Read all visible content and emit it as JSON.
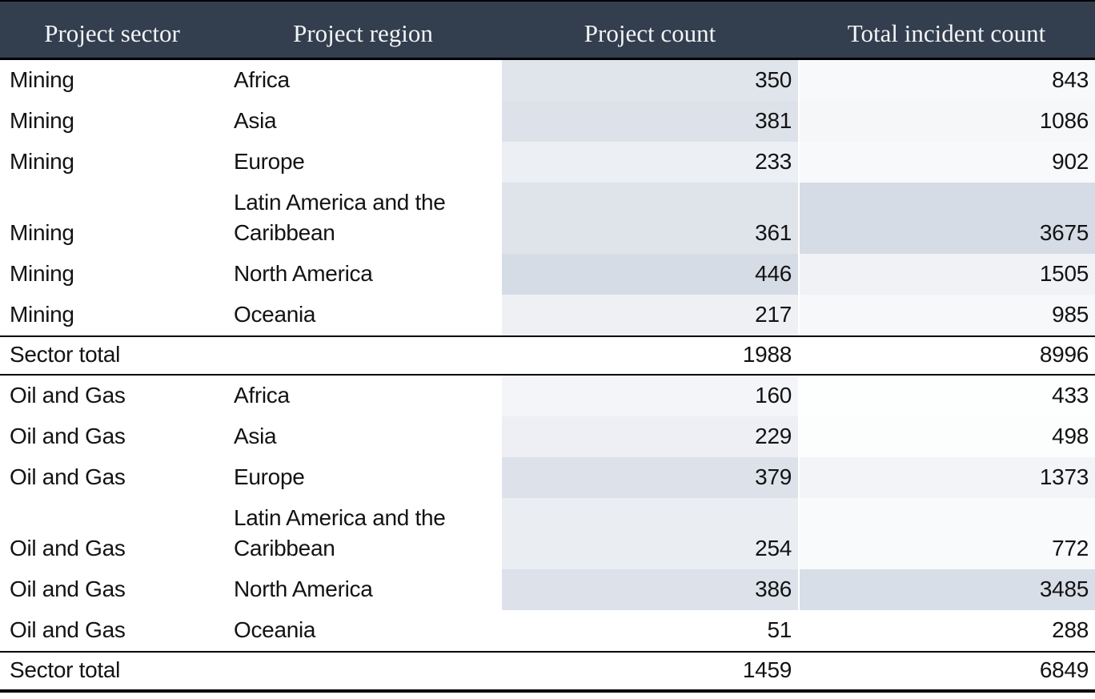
{
  "styles": {
    "header_bg": "#333e4f",
    "header_text": "#f2f4f6",
    "text_color": "#131313",
    "line_color": "#000000"
  },
  "chart_data": {
    "type": "table",
    "columns": [
      "Project sector",
      "Project region",
      "Project count",
      "Total incident count"
    ],
    "heatmap": {
      "applies_to": [
        "Project count",
        "Total incident count"
      ],
      "scale": "linear per column across all data rows; column minimum = min_color, column maximum = max_color",
      "min_color": "#ffffff",
      "max_color": "#d6dce6"
    },
    "groups": [
      {
        "rows": [
          [
            "Mining",
            "Africa",
            350,
            843
          ],
          [
            "Mining",
            "Asia",
            381,
            1086
          ],
          [
            "Mining",
            "Europe",
            233,
            902
          ],
          [
            "Mining",
            "Latin America and the Caribbean",
            361,
            3675
          ],
          [
            "Mining",
            "North America",
            446,
            1505
          ],
          [
            "Mining",
            "Oceania",
            217,
            985
          ]
        ],
        "total": {
          "label": "Sector total",
          "project_count": 1988,
          "incident_count": 8996
        }
      },
      {
        "rows": [
          [
            "Oil and Gas",
            "Africa",
            160,
            433
          ],
          [
            "Oil and Gas",
            "Asia",
            229,
            498
          ],
          [
            "Oil and Gas",
            "Europe",
            379,
            1373
          ],
          [
            "Oil and Gas",
            "Latin America and the Caribbean",
            254,
            772
          ],
          [
            "Oil and Gas",
            "North America",
            386,
            3485
          ],
          [
            "Oil and Gas",
            "Oceania",
            51,
            288
          ]
        ],
        "total": {
          "label": "Sector total",
          "project_count": 1459,
          "incident_count": 6849
        }
      }
    ]
  }
}
